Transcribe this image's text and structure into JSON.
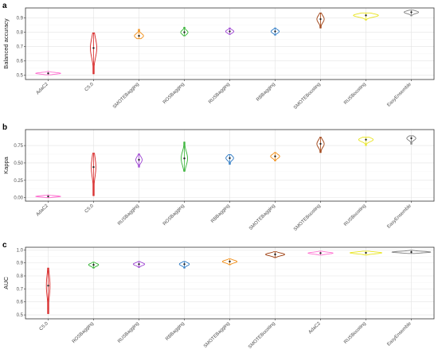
{
  "chart_data": [
    {
      "panel_label": "a",
      "type": "violin",
      "ylabel": "Balanced accuracy",
      "ylim": [
        0.47,
        0.97
      ],
      "yticks": [
        0.5,
        0.6,
        0.7,
        0.8,
        0.9
      ],
      "grid": true,
      "categories": [
        "AdaC2",
        "C5.0",
        "SMOTEBagging",
        "ROSBagging",
        "RUSBagging",
        "RBBagging",
        "SMOTEBoosting",
        "RUSBoosting",
        "EasyEnsemble"
      ],
      "values": [
        {
          "median": 0.513,
          "min": 0.503,
          "max": 0.527,
          "width": 0.55
        },
        {
          "median": 0.69,
          "min": 0.51,
          "max": 0.795,
          "width": 0.14
        },
        {
          "median": 0.775,
          "min": 0.755,
          "max": 0.82,
          "width": 0.2
        },
        {
          "median": 0.8,
          "min": 0.775,
          "max": 0.835,
          "width": 0.16
        },
        {
          "median": 0.806,
          "min": 0.785,
          "max": 0.83,
          "width": 0.18
        },
        {
          "median": 0.806,
          "min": 0.78,
          "max": 0.83,
          "width": 0.18
        },
        {
          "median": 0.892,
          "min": 0.83,
          "max": 0.935,
          "width": 0.16
        },
        {
          "median": 0.918,
          "min": 0.885,
          "max": 0.935,
          "width": 0.55
        },
        {
          "median": 0.94,
          "min": 0.915,
          "max": 0.955,
          "width": 0.32
        }
      ]
    },
    {
      "panel_label": "b",
      "type": "violin",
      "ylabel": "Kappa",
      "ylim": [
        -0.05,
        0.98
      ],
      "yticks": [
        0.0,
        0.25,
        0.5,
        0.75
      ],
      "yticklabels": [
        "0.00",
        "0.25",
        "0.50",
        "0.75"
      ],
      "grid": true,
      "categories": [
        "AdaC2",
        "C5.0",
        "RUSBagging",
        "ROSBagging",
        "RBBagging",
        "SMOTEBagging",
        "SMOTEBoosting",
        "RUSBoosting",
        "EasyEnsemble"
      ],
      "values": [
        {
          "median": 0.018,
          "min": 0.0,
          "max": 0.04,
          "width": 0.55
        },
        {
          "median": 0.44,
          "min": 0.03,
          "max": 0.64,
          "width": 0.1
        },
        {
          "median": 0.545,
          "min": 0.44,
          "max": 0.63,
          "width": 0.14
        },
        {
          "median": 0.565,
          "min": 0.38,
          "max": 0.8,
          "width": 0.14
        },
        {
          "median": 0.57,
          "min": 0.48,
          "max": 0.62,
          "width": 0.17
        },
        {
          "median": 0.595,
          "min": 0.53,
          "max": 0.65,
          "width": 0.2
        },
        {
          "median": 0.775,
          "min": 0.65,
          "max": 0.87,
          "width": 0.16
        },
        {
          "median": 0.835,
          "min": 0.75,
          "max": 0.87,
          "width": 0.32
        },
        {
          "median": 0.855,
          "min": 0.77,
          "max": 0.89,
          "width": 0.2
        }
      ]
    },
    {
      "panel_label": "c",
      "type": "violin",
      "ylabel": "AUC",
      "ylim": [
        0.47,
        1.02
      ],
      "yticks": [
        0.5,
        0.6,
        0.7,
        0.8,
        0.9,
        1.0
      ],
      "yticklabels": [
        "0.5",
        "0.6",
        "0.7",
        "0.8",
        "0.9",
        "1.0"
      ],
      "grid": true,
      "categories": [
        "C5.0",
        "ROSBagging",
        "RUSBagging",
        "RBBagging",
        "SMOTEBagging",
        "SMOTEBoosting",
        "AdaC2",
        "RUSBoosting",
        "EasyEnsemble"
      ],
      "values": [
        {
          "median": 0.725,
          "min": 0.51,
          "max": 0.86,
          "width": 0.08
        },
        {
          "median": 0.885,
          "min": 0.86,
          "max": 0.905,
          "width": 0.22
        },
        {
          "median": 0.89,
          "min": 0.865,
          "max": 0.91,
          "width": 0.25
        },
        {
          "median": 0.89,
          "min": 0.86,
          "max": 0.91,
          "width": 0.22
        },
        {
          "median": 0.91,
          "min": 0.885,
          "max": 0.93,
          "width": 0.32
        },
        {
          "median": 0.965,
          "min": 0.94,
          "max": 0.985,
          "width": 0.42
        },
        {
          "median": 0.975,
          "min": 0.96,
          "max": 0.99,
          "width": 0.55
        },
        {
          "median": 0.977,
          "min": 0.96,
          "max": 0.99,
          "width": 0.7
        },
        {
          "median": 0.983,
          "min": 0.972,
          "max": 0.997,
          "width": 0.85
        }
      ]
    }
  ],
  "colors": {
    "AdaC2": "#ff6fd0",
    "C5.0": "#d61f1f",
    "SMOTEBagging": "#f08a0f",
    "ROSBagging": "#2fb02f",
    "RUSBagging": "#9b3fd1",
    "RBBagging": "#2a78c4",
    "SMOTEBoosting": "#9b3a0a",
    "RUSBoosting": "#e8e41c",
    "EasyEnsemble": "#7f7f7f"
  }
}
